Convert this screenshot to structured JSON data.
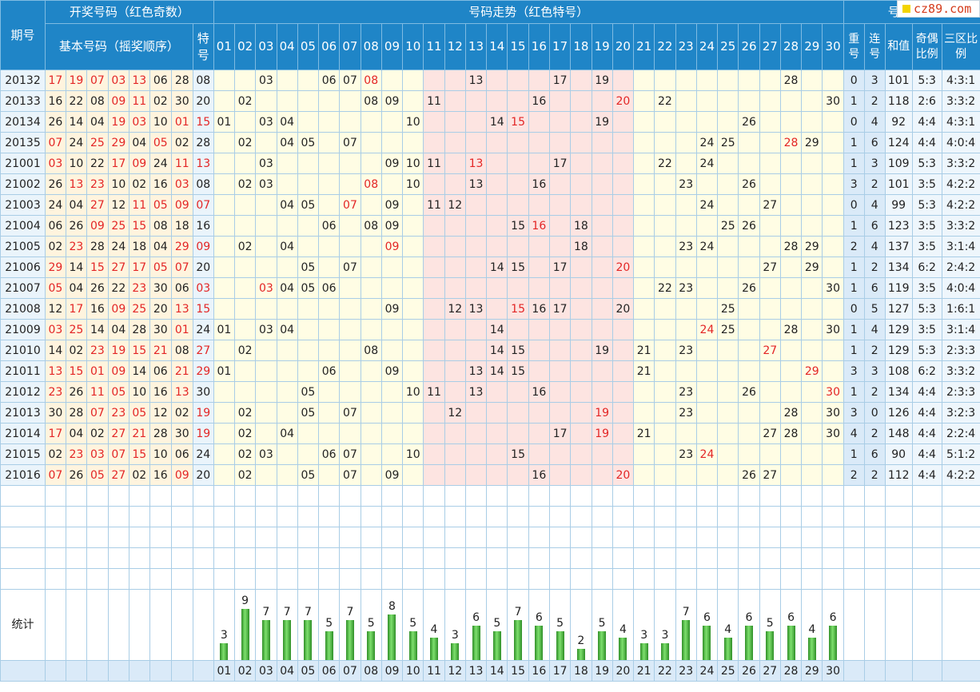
{
  "header": {
    "issue_label": "期号",
    "draw_group": "开奖号码（红色奇数）",
    "base_label": "基本号码（摇奖顺序）",
    "special_label": "特号",
    "trend_group": "号码走势（红色特号）",
    "analysis_group": "号码分析",
    "repeat_label": "重号",
    "consecutive_label": "连号",
    "sum_label": "和值",
    "oddeven_label": "奇偶比例",
    "zone_label": "三区比例",
    "stat_label": "统计"
  },
  "logo_text": "cz89.com",
  "numbers": [
    "01",
    "02",
    "03",
    "04",
    "05",
    "06",
    "07",
    "08",
    "09",
    "10",
    "11",
    "12",
    "13",
    "14",
    "15",
    "16",
    "17",
    "18",
    "19",
    "20",
    "21",
    "22",
    "23",
    "24",
    "25",
    "26",
    "27",
    "28",
    "29",
    "30"
  ],
  "chart_data": {
    "type": "table",
    "columns": [
      "期号",
      "基本号码",
      "特号",
      "重号",
      "连号",
      "和值",
      "奇偶比例",
      "三区比例"
    ],
    "rows": [
      {
        "issue": "20132",
        "base": [
          "17",
          "19",
          "07",
          "03",
          "13",
          "06",
          "28"
        ],
        "special": "08",
        "repeat": "0",
        "consec": "3",
        "sum": "101",
        "oddeven": "5:3",
        "zone": "4:3:1"
      },
      {
        "issue": "20133",
        "base": [
          "16",
          "22",
          "08",
          "09",
          "11",
          "02",
          "30"
        ],
        "special": "20",
        "repeat": "1",
        "consec": "2",
        "sum": "118",
        "oddeven": "2:6",
        "zone": "3:3:2"
      },
      {
        "issue": "20134",
        "base": [
          "26",
          "14",
          "04",
          "19",
          "03",
          "10",
          "01"
        ],
        "special": "15",
        "repeat": "0",
        "consec": "4",
        "sum": "92",
        "oddeven": "4:4",
        "zone": "4:3:1"
      },
      {
        "issue": "20135",
        "base": [
          "07",
          "24",
          "25",
          "29",
          "04",
          "05",
          "02"
        ],
        "special": "28",
        "repeat": "1",
        "consec": "6",
        "sum": "124",
        "oddeven": "4:4",
        "zone": "4:0:4"
      },
      {
        "issue": "21001",
        "base": [
          "03",
          "10",
          "22",
          "17",
          "09",
          "24",
          "11"
        ],
        "special": "13",
        "repeat": "1",
        "consec": "3",
        "sum": "109",
        "oddeven": "5:3",
        "zone": "3:3:2"
      },
      {
        "issue": "21002",
        "base": [
          "26",
          "13",
          "23",
          "10",
          "02",
          "16",
          "03"
        ],
        "special": "08",
        "repeat": "3",
        "consec": "2",
        "sum": "101",
        "oddeven": "3:5",
        "zone": "4:2:2"
      },
      {
        "issue": "21003",
        "base": [
          "24",
          "04",
          "27",
          "12",
          "11",
          "05",
          "09"
        ],
        "special": "07",
        "repeat": "0",
        "consec": "4",
        "sum": "99",
        "oddeven": "5:3",
        "zone": "4:2:2"
      },
      {
        "issue": "21004",
        "base": [
          "06",
          "26",
          "09",
          "25",
          "15",
          "08",
          "18"
        ],
        "special": "16",
        "repeat": "1",
        "consec": "6",
        "sum": "123",
        "oddeven": "3:5",
        "zone": "3:3:2"
      },
      {
        "issue": "21005",
        "base": [
          "02",
          "23",
          "28",
          "24",
          "18",
          "04",
          "29"
        ],
        "special": "09",
        "repeat": "2",
        "consec": "4",
        "sum": "137",
        "oddeven": "3:5",
        "zone": "3:1:4"
      },
      {
        "issue": "21006",
        "base": [
          "29",
          "14",
          "15",
          "27",
          "17",
          "05",
          "07"
        ],
        "special": "20",
        "repeat": "1",
        "consec": "2",
        "sum": "134",
        "oddeven": "6:2",
        "zone": "2:4:2"
      },
      {
        "issue": "21007",
        "base": [
          "05",
          "04",
          "26",
          "22",
          "23",
          "30",
          "06"
        ],
        "special": "03",
        "repeat": "1",
        "consec": "6",
        "sum": "119",
        "oddeven": "3:5",
        "zone": "4:0:4"
      },
      {
        "issue": "21008",
        "base": [
          "12",
          "17",
          "16",
          "09",
          "25",
          "20",
          "13"
        ],
        "special": "15",
        "repeat": "0",
        "consec": "5",
        "sum": "127",
        "oddeven": "5:3",
        "zone": "1:6:1"
      },
      {
        "issue": "21009",
        "base": [
          "03",
          "25",
          "14",
          "04",
          "28",
          "30",
          "01"
        ],
        "special": "24",
        "repeat": "1",
        "consec": "4",
        "sum": "129",
        "oddeven": "3:5",
        "zone": "3:1:4"
      },
      {
        "issue": "21010",
        "base": [
          "14",
          "02",
          "23",
          "19",
          "15",
          "21",
          "08"
        ],
        "special": "27",
        "repeat": "1",
        "consec": "2",
        "sum": "129",
        "oddeven": "5:3",
        "zone": "2:3:3"
      },
      {
        "issue": "21011",
        "base": [
          "13",
          "15",
          "01",
          "09",
          "14",
          "06",
          "21"
        ],
        "special": "29",
        "repeat": "3",
        "consec": "3",
        "sum": "108",
        "oddeven": "6:2",
        "zone": "3:3:2"
      },
      {
        "issue": "21012",
        "base": [
          "23",
          "26",
          "11",
          "05",
          "10",
          "16",
          "13"
        ],
        "special": "30",
        "repeat": "1",
        "consec": "2",
        "sum": "134",
        "oddeven": "4:4",
        "zone": "2:3:3"
      },
      {
        "issue": "21013",
        "base": [
          "30",
          "28",
          "07",
          "23",
          "05",
          "12",
          "02"
        ],
        "special": "19",
        "repeat": "3",
        "consec": "0",
        "sum": "126",
        "oddeven": "4:4",
        "zone": "3:2:3"
      },
      {
        "issue": "21014",
        "base": [
          "17",
          "04",
          "02",
          "27",
          "21",
          "28",
          "30"
        ],
        "special": "19",
        "repeat": "4",
        "consec": "2",
        "sum": "148",
        "oddeven": "4:4",
        "zone": "2:2:4"
      },
      {
        "issue": "21015",
        "base": [
          "02",
          "23",
          "03",
          "07",
          "15",
          "10",
          "06"
        ],
        "special": "24",
        "repeat": "1",
        "consec": "6",
        "sum": "90",
        "oddeven": "4:4",
        "zone": "5:1:2"
      },
      {
        "issue": "21016",
        "base": [
          "07",
          "26",
          "05",
          "27",
          "02",
          "16",
          "09"
        ],
        "special": "20",
        "repeat": "2",
        "consec": "2",
        "sum": "112",
        "oddeven": "4:4",
        "zone": "4:2:2"
      }
    ],
    "stat_counts": [
      3,
      9,
      7,
      7,
      7,
      5,
      7,
      5,
      8,
      5,
      4,
      3,
      6,
      5,
      7,
      6,
      5,
      2,
      5,
      4,
      3,
      3,
      7,
      6,
      4,
      6,
      5,
      6,
      4,
      6
    ],
    "zones": {
      "zone1": "01-10",
      "zone2": "11-20",
      "zone3": "21-30"
    },
    "colors": {
      "header": "#1f85c7",
      "zone1": "#fffde4",
      "zone2": "#fde4e1",
      "base_cell": "#fff4de",
      "odd_text": "#e32626",
      "bar": "#3cab32"
    }
  }
}
